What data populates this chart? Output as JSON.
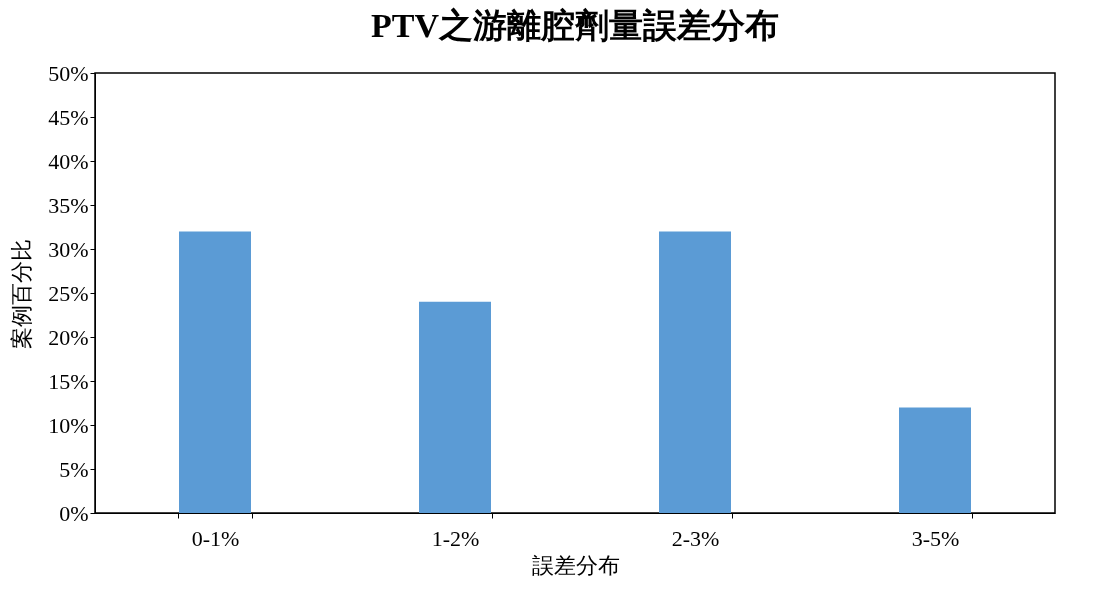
{
  "chart_data": {
    "type": "bar",
    "title": "PTV之游離腔劑量誤差分布",
    "xlabel": "誤差分布",
    "ylabel": "案例百分比",
    "categories": [
      "0-1%",
      "1-2%",
      "2-3%",
      "3-5%"
    ],
    "values": [
      32,
      24,
      32,
      12
    ],
    "color": "#5b9bd5",
    "ylim": [
      0,
      50
    ],
    "yticks": [
      {
        "value": 0,
        "label": "0%"
      },
      {
        "value": 5,
        "label": "5%"
      },
      {
        "value": 10,
        "label": "10%"
      },
      {
        "value": 15,
        "label": "15%"
      },
      {
        "value": 20,
        "label": "20%"
      },
      {
        "value": 25,
        "label": "25%"
      },
      {
        "value": 30,
        "label": "30%"
      },
      {
        "value": 35,
        "label": "35%"
      },
      {
        "value": 40,
        "label": "40%"
      },
      {
        "value": 45,
        "label": "45%"
      },
      {
        "value": 50,
        "label": "50%"
      }
    ],
    "grid": false
  }
}
